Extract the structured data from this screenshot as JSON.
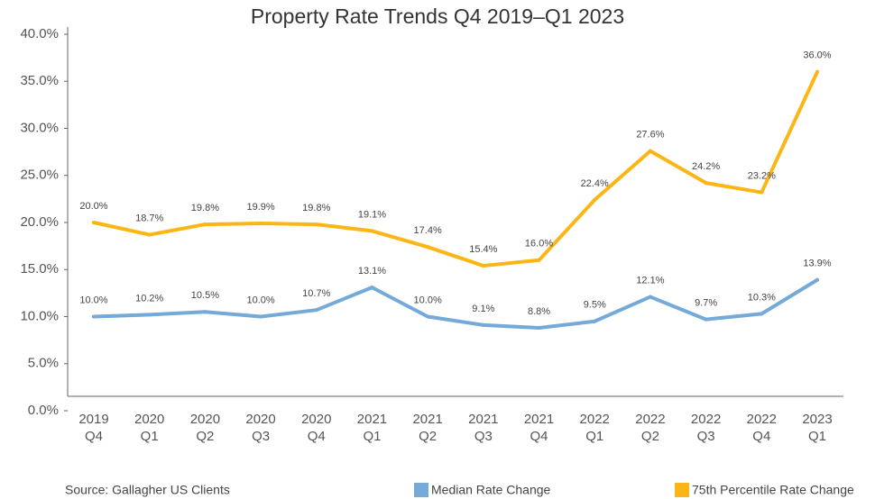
{
  "chart_data": {
    "type": "line",
    "title": "Property Rate Trends Q4 2019–Q1 2023",
    "source": "Source: Gallagher US Clients",
    "categories": [
      [
        "2019",
        "Q4"
      ],
      [
        "2020",
        "Q1"
      ],
      [
        "2020",
        "Q2"
      ],
      [
        "2020",
        "Q3"
      ],
      [
        "2020",
        "Q4"
      ],
      [
        "2021",
        "Q1"
      ],
      [
        "2021",
        "Q2"
      ],
      [
        "2021",
        "Q3"
      ],
      [
        "2021",
        "Q4"
      ],
      [
        "2022",
        "Q1"
      ],
      [
        "2022",
        "Q2"
      ],
      [
        "2022",
        "Q3"
      ],
      [
        "2022",
        "Q4"
      ],
      [
        "2023",
        "Q1"
      ]
    ],
    "series": [
      {
        "name": "Median Rate Change",
        "color": "#74a9d8",
        "values": [
          10.0,
          10.2,
          10.5,
          10.0,
          10.7,
          13.1,
          10.0,
          9.1,
          8.8,
          9.5,
          12.1,
          9.7,
          10.3,
          13.9
        ],
        "value_labels": [
          "10.0%",
          "10.2%",
          "10.5%",
          "10.0%",
          "10.7%",
          "13.1%",
          "10.0%",
          "9.1%",
          "8.8%",
          "9.5%",
          "12.1%",
          "9.7%",
          "10.3%",
          "13.9%"
        ]
      },
      {
        "name": "75th Percentile Rate Change",
        "color": "#fbb615",
        "values": [
          20.0,
          18.7,
          19.8,
          19.9,
          19.8,
          19.1,
          17.4,
          15.4,
          16.0,
          22.4,
          27.6,
          24.2,
          23.2,
          36.0
        ],
        "value_labels": [
          "20.0%",
          "18.7%",
          "19.8%",
          "19.9%",
          "19.8%",
          "19.1%",
          "17.4%",
          "15.4%",
          "16.0%",
          "22.4%",
          "27.6%",
          "24.2%",
          "23.2%",
          "36.0%"
        ]
      }
    ],
    "ylim": [
      0,
      40
    ],
    "yticks": [
      {
        "value": 0,
        "label": "0.0%"
      },
      {
        "value": 5,
        "label": "5.0%"
      },
      {
        "value": 10,
        "label": "10.0%"
      },
      {
        "value": 15,
        "label": "15.0%"
      },
      {
        "value": 20,
        "label": "20.0%"
      },
      {
        "value": 25,
        "label": "25.0%"
      },
      {
        "value": 30,
        "label": "30.0%"
      },
      {
        "value": 35,
        "label": "35.0%"
      },
      {
        "value": 40,
        "label": "40.0%"
      }
    ],
    "grid": false,
    "legend": "bottom-right"
  }
}
